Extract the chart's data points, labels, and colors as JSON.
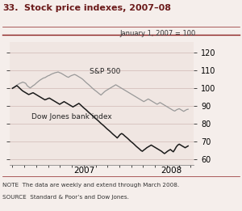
{
  "title_num": "33.",
  "title_text": "Stock price indexes, 2007–08",
  "note": "NOTE  The data are weekly and extend through March 2008.",
  "source": "SOURCE  Standard & Poor’s and Dow Jones.",
  "annotation": "January 1, 2007 = 100",
  "sp500_label": "S&P 500",
  "dj_label": "Dow Jones bank index",
  "ylim": [
    57,
    126
  ],
  "yticks": [
    60,
    70,
    80,
    90,
    100,
    110,
    120
  ],
  "background_color": "#f5eeeb",
  "plot_bg_color": "#f0e6e2",
  "line_color_sp500": "#999999",
  "line_color_dj": "#1a1a1a",
  "title_color": "#6b1a1a",
  "note_color": "#333333",
  "border_color": "#8b2020",
  "sp500": [
    100.0,
    100.5,
    101.2,
    101.8,
    102.3,
    102.8,
    103.1,
    103.5,
    103.2,
    102.8,
    101.5,
    100.8,
    100.2,
    100.8,
    101.5,
    102.0,
    102.8,
    103.5,
    104.2,
    104.8,
    105.3,
    105.8,
    106.0,
    106.5,
    107.0,
    107.3,
    107.8,
    108.2,
    108.5,
    108.8,
    109.0,
    109.2,
    108.8,
    108.5,
    108.0,
    107.5,
    107.0,
    106.5,
    106.2,
    106.8,
    107.2,
    107.5,
    107.8,
    107.5,
    107.0,
    106.5,
    106.0,
    105.5,
    104.8,
    104.0,
    103.2,
    102.5,
    101.8,
    101.0,
    100.2,
    99.5,
    98.8,
    98.2,
    97.5,
    96.8,
    96.2,
    97.0,
    97.8,
    98.5,
    99.0,
    99.5,
    100.0,
    100.5,
    101.0,
    101.5,
    102.0,
    101.5,
    101.0,
    100.5,
    100.0,
    99.5,
    99.0,
    98.5,
    98.0,
    97.5,
    97.0,
    96.5,
    96.0,
    95.5,
    95.0,
    94.5,
    94.0,
    93.5,
    93.0,
    92.5,
    93.0,
    93.5,
    94.0,
    93.5,
    93.0,
    92.5,
    92.0,
    91.5,
    91.0,
    91.5,
    92.0,
    91.5,
    91.0,
    90.5,
    90.0,
    89.5,
    89.0,
    88.5,
    88.0,
    87.5,
    87.2,
    87.8,
    88.2,
    88.5,
    88.0,
    87.5,
    87.0,
    87.5,
    88.0,
    88.2
  ],
  "dj": [
    100.0,
    100.5,
    101.0,
    101.5,
    100.8,
    100.0,
    99.2,
    98.5,
    98.0,
    97.5,
    97.0,
    96.5,
    96.8,
    97.2,
    97.5,
    97.0,
    96.5,
    96.0,
    95.5,
    95.0,
    94.5,
    94.0,
    93.5,
    93.8,
    94.2,
    94.5,
    94.0,
    93.5,
    93.0,
    92.5,
    92.0,
    91.5,
    91.0,
    91.5,
    92.0,
    92.5,
    92.0,
    91.5,
    91.0,
    90.5,
    90.0,
    89.5,
    90.0,
    90.5,
    91.0,
    91.5,
    90.8,
    90.0,
    89.2,
    88.5,
    87.8,
    87.0,
    86.2,
    85.5,
    84.8,
    84.0,
    83.2,
    82.5,
    81.8,
    81.0,
    80.2,
    79.5,
    78.8,
    78.0,
    77.2,
    76.5,
    75.8,
    75.0,
    74.2,
    73.5,
    72.8,
    72.0,
    73.0,
    74.0,
    74.5,
    74.0,
    73.2,
    72.5,
    71.8,
    71.0,
    70.2,
    69.5,
    68.8,
    68.0,
    67.2,
    66.5,
    65.8,
    65.0,
    64.5,
    65.2,
    65.8,
    66.5,
    67.0,
    67.5,
    68.0,
    67.5,
    67.0,
    66.5,
    66.0,
    65.5,
    65.0,
    64.5,
    63.8,
    63.2,
    63.8,
    64.5,
    65.0,
    65.5,
    64.8,
    64.2,
    65.5,
    67.0,
    68.0,
    68.5,
    68.0,
    67.5,
    67.0,
    66.5,
    67.0,
    67.5
  ]
}
